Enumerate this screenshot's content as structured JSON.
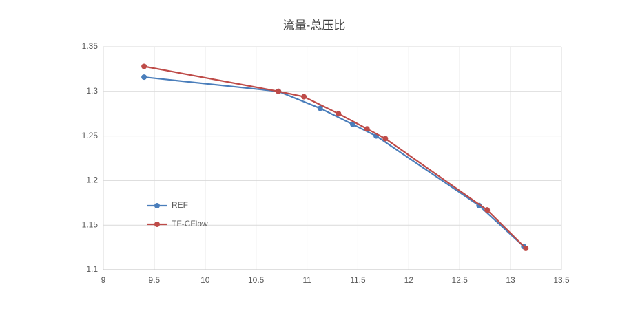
{
  "chart_data": {
    "type": "line",
    "title": "流量-总压比",
    "series": [
      {
        "name": "REF",
        "color": "#4a7ebb",
        "x": [
          9.4,
          10.72,
          11.13,
          11.45,
          11.68,
          12.69,
          13.13
        ],
        "values": [
          1.316,
          1.3,
          1.281,
          1.263,
          1.25,
          1.172,
          1.126
        ]
      },
      {
        "name": "TF-CFlow",
        "color": "#be4b48",
        "x": [
          9.4,
          10.72,
          10.97,
          11.31,
          11.59,
          11.77,
          12.77,
          13.15
        ],
        "values": [
          1.328,
          1.3,
          1.294,
          1.275,
          1.258,
          1.247,
          1.167,
          1.124
        ]
      }
    ],
    "xlim": [
      9,
      13.5
    ],
    "xticks": [
      9,
      9.5,
      10,
      10.5,
      11,
      11.5,
      12,
      12.5,
      13,
      13.5
    ],
    "ylim": [
      1.1,
      1.35
    ],
    "yticks": [
      1.1,
      1.15,
      1.2,
      1.25,
      1.3,
      1.35
    ],
    "grid": true,
    "legend": "left"
  }
}
